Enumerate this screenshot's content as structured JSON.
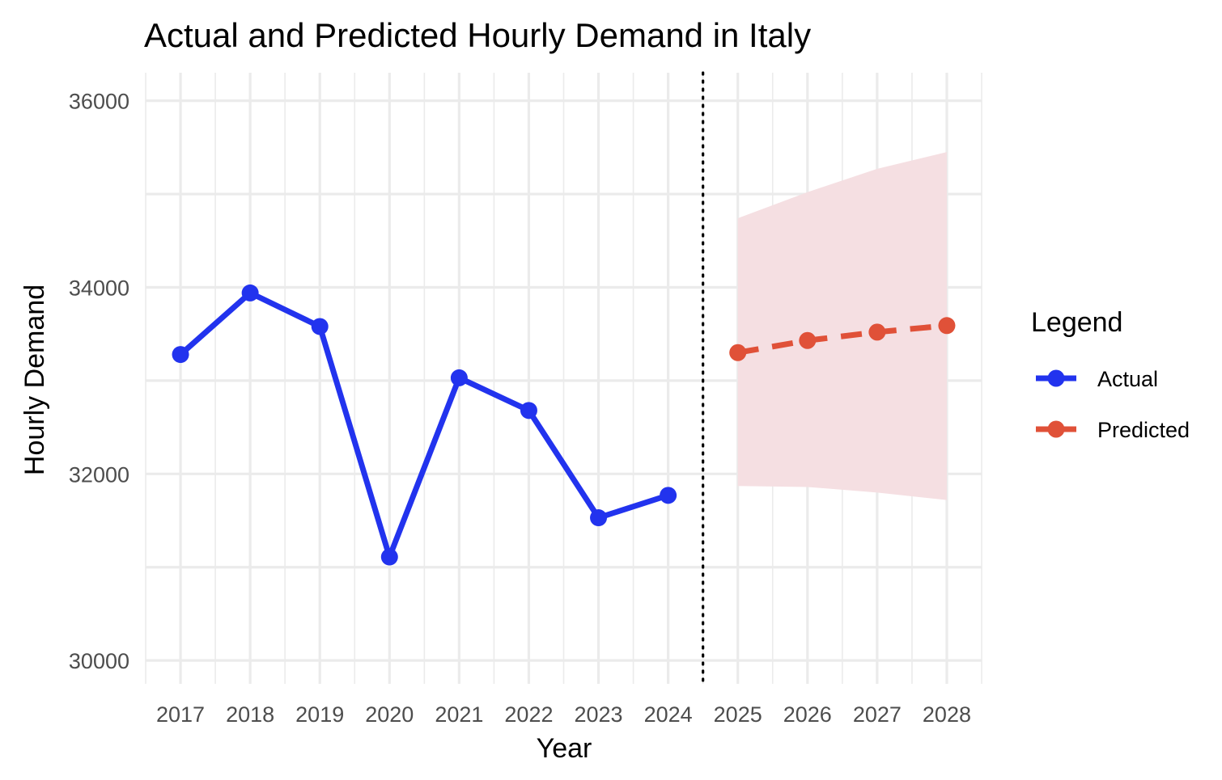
{
  "chart_data": {
    "type": "line",
    "title": "Actual and Predicted Hourly Demand in Italy",
    "xlabel": "Year",
    "ylabel": "Hourly Demand",
    "xlim": [
      2016.5,
      2028.5
    ],
    "ylim": [
      29750,
      36300
    ],
    "x_ticks": [
      2017,
      2018,
      2019,
      2020,
      2021,
      2022,
      2023,
      2024,
      2025,
      2026,
      2027,
      2028
    ],
    "y_ticks": [
      30000,
      32000,
      34000,
      36000
    ],
    "y_minor_ticks": [
      31000,
      33000,
      35000
    ],
    "grid": true,
    "legend_title": "Legend",
    "legend_position": "right",
    "vline": {
      "x": 2024.5,
      "style": "dotted"
    },
    "series": [
      {
        "name": "Actual",
        "style": "solid",
        "color": "#2233ee",
        "x": [
          2017,
          2018,
          2019,
          2020,
          2021,
          2022,
          2023,
          2024
        ],
        "values": [
          33280,
          33940,
          33580,
          31110,
          33030,
          32680,
          31530,
          31770
        ]
      },
      {
        "name": "Predicted",
        "style": "dashed",
        "color": "#e05138",
        "x": [
          2025,
          2026,
          2027,
          2028
        ],
        "values": [
          33300,
          33430,
          33520,
          33590
        ],
        "band_upper": [
          34740,
          35020,
          35270,
          35450
        ],
        "band_lower": [
          31870,
          31860,
          31800,
          31720
        ],
        "band_color": "#f5dfe2"
      }
    ]
  }
}
